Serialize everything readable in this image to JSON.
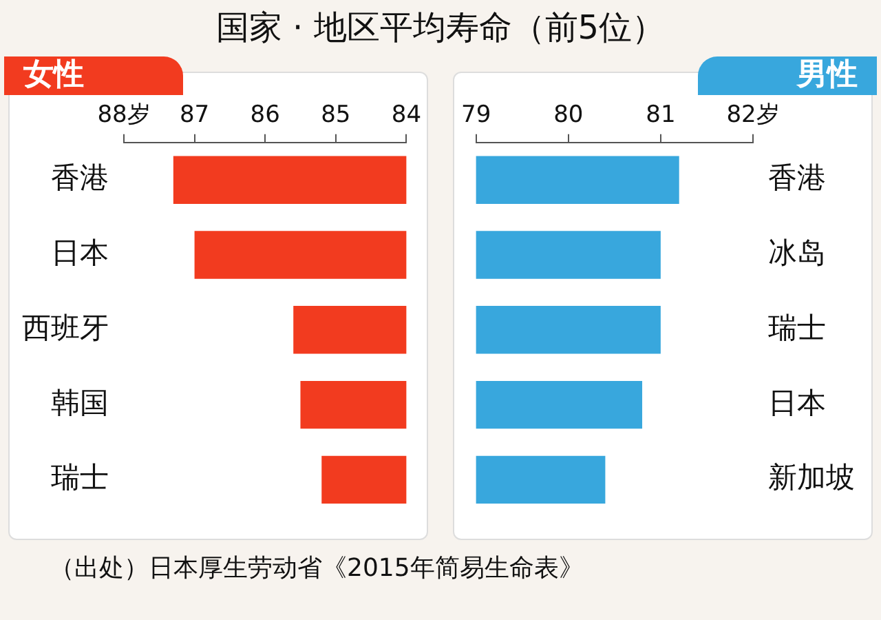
{
  "chart_data": [
    {
      "type": "bar",
      "title": "国家 · 地区平均寿命（前5位）",
      "subtitle": "女性",
      "orientation": "horizontal",
      "categories": [
        "香港",
        "日本",
        "西班牙",
        "韩国",
        "瑞士"
      ],
      "values": [
        87.3,
        87.0,
        85.6,
        85.5,
        85.2
      ],
      "color": "#f23b1f",
      "xlim": [
        88,
        84
      ],
      "xticks": [
        {
          "value": 88,
          "label": "88岁"
        },
        87,
        86,
        85,
        84
      ],
      "grid": false,
      "annotations": [
        "（出处）日本厚生劳动省《2015年简易生命表》"
      ]
    },
    {
      "type": "bar",
      "subtitle": "男性",
      "orientation": "horizontal",
      "categories": [
        "香港",
        "冰岛",
        "瑞士",
        "日本",
        "新加坡"
      ],
      "values": [
        81.2,
        81.0,
        81.0,
        80.8,
        80.4
      ],
      "color": "#38a7dd",
      "xlim": [
        79,
        82
      ],
      "xticks": [
        79,
        80,
        81,
        {
          "value": 82,
          "label": "82岁"
        }
      ],
      "grid": false
    }
  ]
}
